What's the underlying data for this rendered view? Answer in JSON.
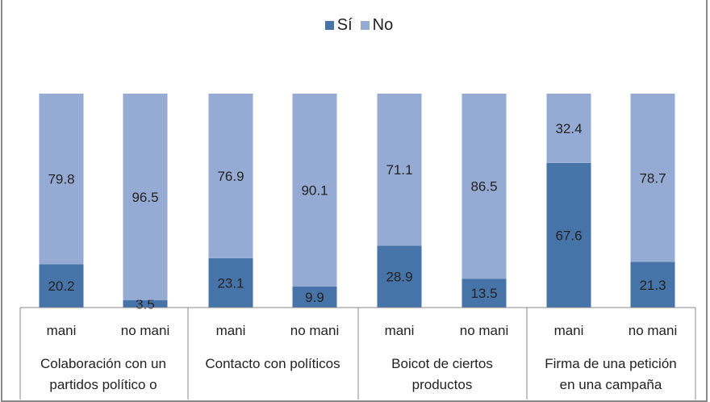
{
  "chart_data": {
    "type": "bar",
    "stacked": true,
    "title": "",
    "legend_position": "top",
    "ylim": [
      0,
      100
    ],
    "grid": false,
    "categories": [
      "mani",
      "no mani",
      "mani",
      "no mani",
      "mani",
      "no mani",
      "mani",
      "no mani"
    ],
    "groups": [
      {
        "label_lines": [
          "Colaboración con un",
          "partidos político o"
        ]
      },
      {
        "label_lines": [
          "Contacto con políticos"
        ]
      },
      {
        "label_lines": [
          "Boicot de ciertos",
          "productos"
        ]
      },
      {
        "label_lines": [
          "Firma de una petición",
          "en una campaña"
        ]
      }
    ],
    "series": [
      {
        "name": "Sí",
        "color": "#4673a8",
        "values": [
          20.2,
          3.5,
          23.1,
          9.9,
          28.9,
          13.5,
          67.6,
          21.3
        ]
      },
      {
        "name": "No",
        "color": "#95abd3",
        "values": [
          79.8,
          96.5,
          76.9,
          90.1,
          71.1,
          86.5,
          32.4,
          78.7
        ]
      }
    ]
  }
}
